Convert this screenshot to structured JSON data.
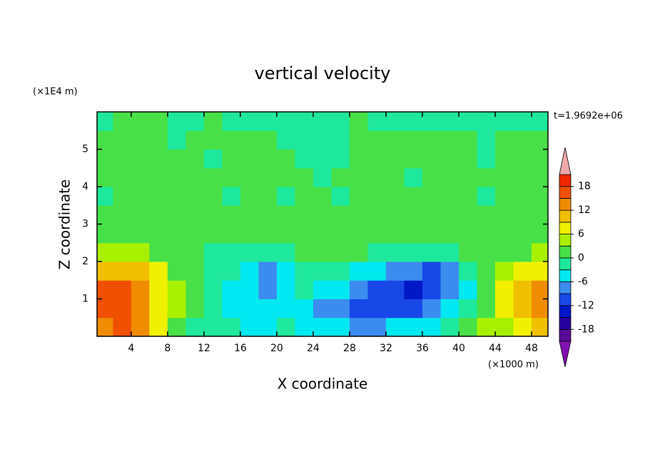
{
  "chart_data": {
    "type": "contour",
    "title": "vertical velocity",
    "xlabel": "X coordinate",
    "ylabel": "Z coordinate",
    "x_unit": "(×1000 m)",
    "y_unit": "(×1E4 m)",
    "annotation": "t=1.9692e+06",
    "x": [
      1,
      3,
      5,
      7,
      9,
      11,
      13,
      15,
      17,
      19,
      21,
      23,
      25,
      27,
      29,
      31,
      33,
      35,
      37,
      39,
      41,
      43,
      45,
      47,
      49
    ],
    "y": [
      0.25,
      0.75,
      1.25,
      1.75,
      2.25,
      2.75,
      3.25,
      3.75,
      4.25,
      4.75,
      5.25,
      5.75
    ],
    "z": [
      [
        12,
        15,
        12,
        6,
        2,
        -1,
        -2,
        -3,
        -4,
        -4,
        -3,
        -6,
        -6,
        -6,
        -7,
        -7,
        -6,
        -6,
        -4,
        -1,
        2,
        5,
        3,
        6,
        9
      ],
      [
        15,
        17,
        14,
        8,
        3,
        0,
        -2,
        -4,
        -5,
        -6,
        -5,
        -4,
        -7,
        -9,
        -10,
        -11,
        -11,
        -11,
        -8,
        -5,
        -2,
        2,
        6,
        10,
        13
      ],
      [
        15,
        17,
        14,
        8,
        3,
        0,
        -2,
        -4,
        -6,
        -9,
        -6,
        -2,
        -4,
        -6,
        -8,
        -10,
        -12,
        -13,
        -12,
        -8,
        -4,
        2,
        6,
        10,
        12
      ],
      [
        9,
        11,
        9,
        6,
        2,
        0,
        -1,
        -3,
        -5,
        -7,
        -4,
        -1,
        -2,
        -3,
        -4,
        -6,
        -8,
        -9,
        -10,
        -7,
        -3,
        0,
        3,
        6,
        8
      ],
      [
        3,
        4,
        3,
        2,
        1,
        0,
        -1,
        -1,
        -2,
        -2,
        -1,
        0,
        1,
        1,
        0,
        -1,
        -1,
        -2,
        -2,
        -1,
        0,
        1,
        1,
        2,
        3
      ],
      [
        0,
        1,
        0,
        1,
        0,
        0,
        1,
        0,
        1,
        0,
        1,
        0,
        1,
        1,
        0,
        1,
        0,
        1,
        0,
        1,
        0,
        0,
        1,
        0,
        0
      ],
      [
        0,
        1,
        1,
        1,
        0,
        1,
        0,
        1,
        1,
        1,
        1,
        1,
        1,
        0,
        1,
        1,
        1,
        0,
        1,
        1,
        1,
        1,
        1,
        1,
        1
      ],
      [
        -1,
        0,
        1,
        1,
        1,
        1,
        0,
        -1,
        1,
        1,
        -1,
        0,
        0,
        -1,
        1,
        0,
        1,
        1,
        0,
        1,
        0,
        -1,
        0,
        1,
        0
      ],
      [
        1,
        1,
        0,
        1,
        1,
        1,
        0,
        0,
        1,
        1,
        1,
        0,
        -1,
        1,
        1,
        0,
        0,
        -1,
        1,
        1,
        1,
        0,
        0,
        1,
        1
      ],
      [
        0,
        1,
        1,
        1,
        1,
        1,
        -1,
        0,
        0,
        1,
        0,
        -1,
        -1,
        -1,
        1,
        0,
        0,
        1,
        1,
        1,
        0,
        -1,
        0,
        1,
        1
      ],
      [
        1,
        1,
        1,
        0,
        -1,
        1,
        1,
        1,
        1,
        0,
        -1,
        -1,
        -1,
        -1,
        1,
        0,
        0,
        1,
        1,
        2,
        1,
        -1,
        0,
        0,
        1
      ],
      [
        -1,
        0,
        1,
        0,
        -1,
        -1,
        0,
        -1,
        -1,
        -1,
        -1,
        -1,
        -1,
        -1,
        0,
        -1,
        -1,
        -1,
        -1,
        -1,
        -1,
        -1,
        -1,
        -1,
        -1
      ]
    ],
    "levels": [
      -21,
      -18,
      -15,
      -12,
      -9,
      -6,
      -3,
      0,
      3,
      6,
      9,
      12,
      15,
      18,
      21
    ],
    "colors": [
      "#5a0a9a",
      "#2800a0",
      "#0018c8",
      "#1848e8",
      "#3c8cf0",
      "#00e8f0",
      "#1ee89c",
      "#48e048",
      "#a8f000",
      "#f0f000",
      "#f0c000",
      "#f08c00",
      "#f05000",
      "#f02800"
    ],
    "under_color": "#8010b0",
    "over_color": "#f0a8a8",
    "colorbar_ticks": [
      -18,
      -12,
      -6,
      0,
      6,
      12,
      18
    ],
    "xlim": [
      0.25,
      49.8
    ],
    "ylim": [
      0,
      6
    ],
    "xticks": [
      4,
      8,
      12,
      16,
      20,
      24,
      28,
      32,
      36,
      40,
      44,
      48
    ],
    "yticks": [
      1,
      2,
      3,
      4,
      5
    ]
  }
}
